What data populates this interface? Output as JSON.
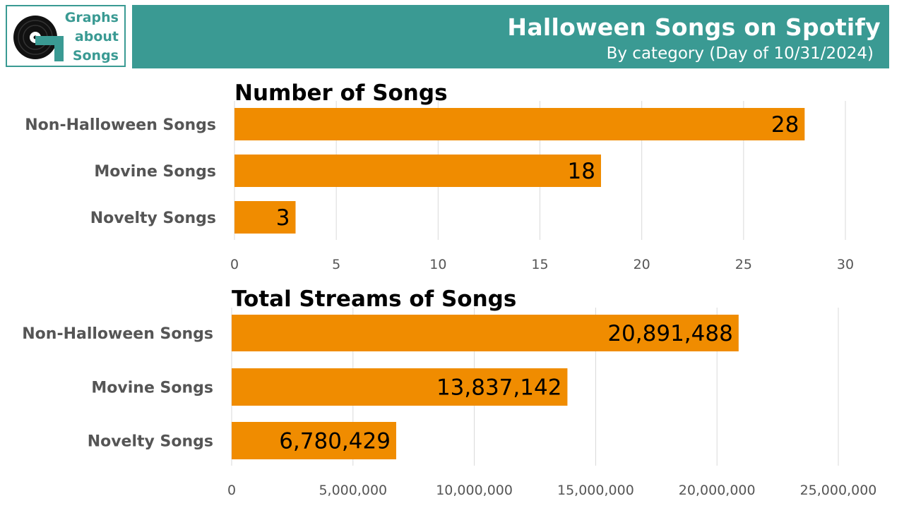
{
  "logo": {
    "lines": [
      "Graphs",
      "about",
      "Songs"
    ],
    "icon": "vinyl-record-icon"
  },
  "header": {
    "title": "Halloween Songs on Spotify",
    "subtitle": "By category (Day of 10/31/2024)"
  },
  "colors": {
    "header_bg": "#3a9a93",
    "bar": "#f08c00",
    "grid": "#d9d9d9"
  },
  "chart_data": [
    {
      "type": "bar",
      "orientation": "horizontal",
      "title": "Number of Songs",
      "categories": [
        "Non-Halloween Songs",
        "Movine Songs",
        "Novelty Songs"
      ],
      "values": [
        28,
        18,
        3
      ],
      "value_labels": [
        "28",
        "18",
        "3"
      ],
      "xlim": [
        0,
        30
      ],
      "ticks": [
        0,
        5,
        10,
        15,
        20,
        25,
        30
      ],
      "tick_labels": [
        "0",
        "5",
        "10",
        "15",
        "20",
        "25",
        "30"
      ],
      "grid": true
    },
    {
      "type": "bar",
      "orientation": "horizontal",
      "title": "Total Streams of Songs",
      "categories": [
        "Non-Halloween Songs",
        "Movine Songs",
        "Novelty Songs"
      ],
      "values": [
        20891488,
        13837142,
        6780429
      ],
      "value_labels": [
        "20,891,488",
        "13,837,142",
        "6,780,429"
      ],
      "xlim": [
        0,
        25000000
      ],
      "ticks": [
        0,
        5000000,
        10000000,
        15000000,
        20000000,
        25000000
      ],
      "tick_labels": [
        "0",
        "5,000,000",
        "10,000,000",
        "15,000,000",
        "20,000,000",
        "25,000,000"
      ],
      "grid": true
    }
  ]
}
